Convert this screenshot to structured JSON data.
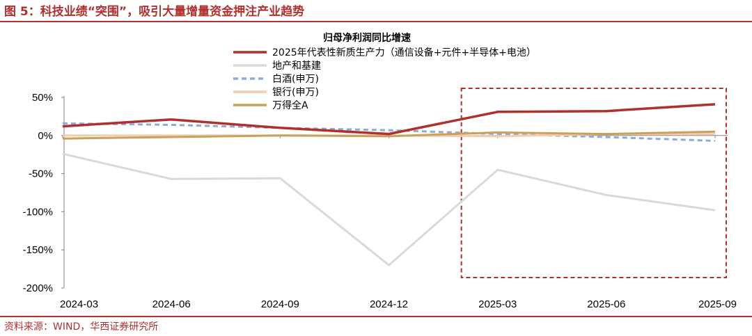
{
  "figure_title": "图 5：科技业绩“突围”，吸引大量增量资金押注产业趋势",
  "source": "资料来源：WIND，华西证券研究所",
  "chart_data": {
    "type": "line",
    "title": "归母净利润同比增速",
    "xlabel": "",
    "ylabel": "",
    "categories": [
      "2024-03",
      "2024-06",
      "2024-09",
      "2024-12",
      "2025-03",
      "2025-06",
      "2025-09"
    ],
    "yticks": [
      "50%",
      "0%",
      "-50%",
      "-100%",
      "-150%",
      "-200%"
    ],
    "ylim": [
      -200,
      50
    ],
    "grid": false,
    "legend_position": "top-left",
    "highlight_box": {
      "from_category": "2025-03",
      "to_category": "2025-09",
      "style": "dashed",
      "color": "#b0302c"
    },
    "series": [
      {
        "name": "2025年代表性新质生产力（通信设备+元件+半导体+电池）",
        "color": "#b0302c",
        "dash": "solid",
        "values": [
          12,
          21,
          10,
          2,
          31,
          32,
          41
        ]
      },
      {
        "name": "地产和基建",
        "color": "#d9d9d9",
        "dash": "solid",
        "values": [
          -24,
          -57,
          -56,
          -170,
          -45,
          -78,
          -98
        ]
      },
      {
        "name": "白酒(申万)",
        "color": "#8eaadb",
        "dash": "dashed",
        "values": [
          16,
          14,
          10,
          7,
          2,
          -2,
          -7
        ]
      },
      {
        "name": "银行(申万)",
        "color": "#f8cbad",
        "dash": "solid",
        "values": [
          0,
          0,
          0,
          0,
          -1,
          2,
          2
        ]
      },
      {
        "name": "万得全A",
        "color": "#c9a25a",
        "dash": "solid",
        "values": [
          -4,
          -2,
          0,
          -1,
          4,
          2,
          5
        ]
      }
    ]
  }
}
